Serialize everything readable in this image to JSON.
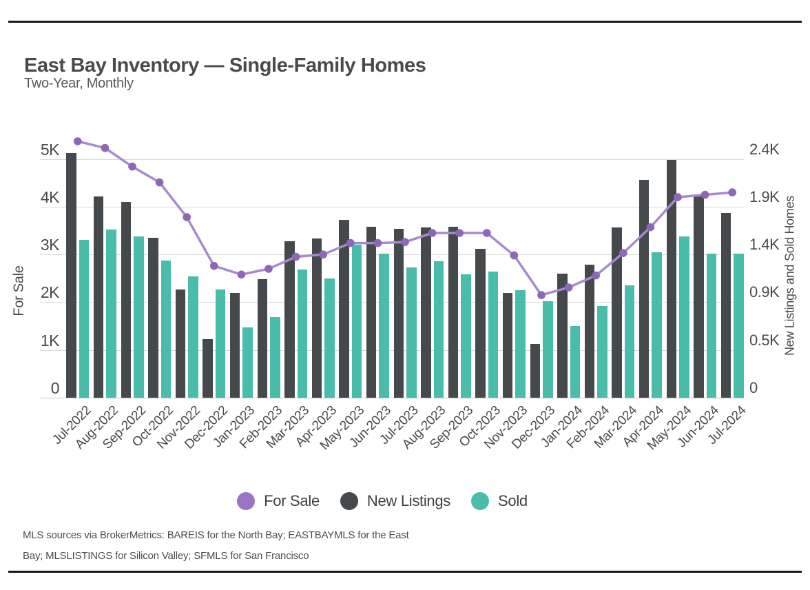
{
  "header": {
    "title": "East Bay Inventory — Single-Family Homes",
    "subtitle": "Two-Year, Monthly"
  },
  "footer": {
    "line1": "MLS sources via BrokerMetrics: BAREIS for the North Bay; EASTBAYMLS for the East",
    "line2": "Bay; MLSLISTINGS for Silicon Valley; SFMLS for San Francisco"
  },
  "chart_data": {
    "type": "bar+line",
    "title": "East Bay Inventory — Single-Family Homes",
    "subtitle": "Two-Year, Monthly",
    "categories": [
      "Jul-2022",
      "Aug-2022",
      "Sep-2022",
      "Oct-2022",
      "Nov-2022",
      "Dec-2022",
      "Jan-2023",
      "Feb-2023",
      "Mar-2023",
      "Apr-2023",
      "May-2023",
      "Jun-2023",
      "Jul-2023",
      "Aug-2023",
      "Sep-2023",
      "Oct-2023",
      "Nov-2023",
      "Dec-2023",
      "Jan-2024",
      "Feb-2024",
      "Mar-2024",
      "Apr-2024",
      "May-2024",
      "Jun-2024",
      "Jul-2024"
    ],
    "series": [
      {
        "name": "For Sale",
        "type": "line",
        "axis": "left",
        "color": "#8d67b8",
        "line_color": "#a78bd0",
        "values": [
          5370,
          5230,
          4840,
          4510,
          3780,
          2760,
          2580,
          2700,
          2950,
          3000,
          3240,
          3240,
          3260,
          3450,
          3450,
          3450,
          2980,
          2150,
          2310,
          2560,
          3030,
          3570,
          4200,
          4250,
          4300
        ]
      },
      {
        "name": "New Listings",
        "type": "bar",
        "axis": "right",
        "color": "#45494b",
        "values": [
          2460,
          2020,
          1970,
          1610,
          1090,
          590,
          1050,
          1190,
          1570,
          1600,
          1790,
          1720,
          1700,
          1710,
          1720,
          1500,
          1050,
          540,
          1250,
          1340,
          1710,
          2190,
          2390,
          2040,
          1860
        ]
      },
      {
        "name": "Sold",
        "type": "bar",
        "axis": "right",
        "color": "#4abcab",
        "values": [
          1590,
          1690,
          1620,
          1380,
          1220,
          1090,
          710,
          810,
          1290,
          1200,
          1540,
          1450,
          1310,
          1370,
          1240,
          1270,
          1080,
          970,
          720,
          920,
          1130,
          1460,
          1620,
          1450,
          1450
        ]
      }
    ],
    "left_axis": {
      "label": "For Sale",
      "range": [
        0,
        5500
      ],
      "tick_values": [
        0,
        1000,
        2000,
        3000,
        4000,
        5000
      ],
      "tick_labels": [
        "0",
        "1K",
        "2K",
        "3K",
        "4K",
        "5K"
      ]
    },
    "right_axis": {
      "label": "New Listings and Sold Homes",
      "range": [
        0,
        2640
      ],
      "tick_labels": [
        "0",
        "0.5K",
        "0.9K",
        "1.4K",
        "1.9K",
        "2.4K"
      ]
    },
    "legend": [
      {
        "label": "For Sale",
        "color": "#9b74c6"
      },
      {
        "label": "New Listings",
        "color": "#45494b"
      },
      {
        "label": "Sold",
        "color": "#4abcab"
      }
    ],
    "grid": true,
    "legend_position": "bottom"
  },
  "colors": {
    "grid": "#dadada",
    "axis_line": "#c6c6c6",
    "text": "#4a4a4a",
    "rule": "#181818"
  }
}
